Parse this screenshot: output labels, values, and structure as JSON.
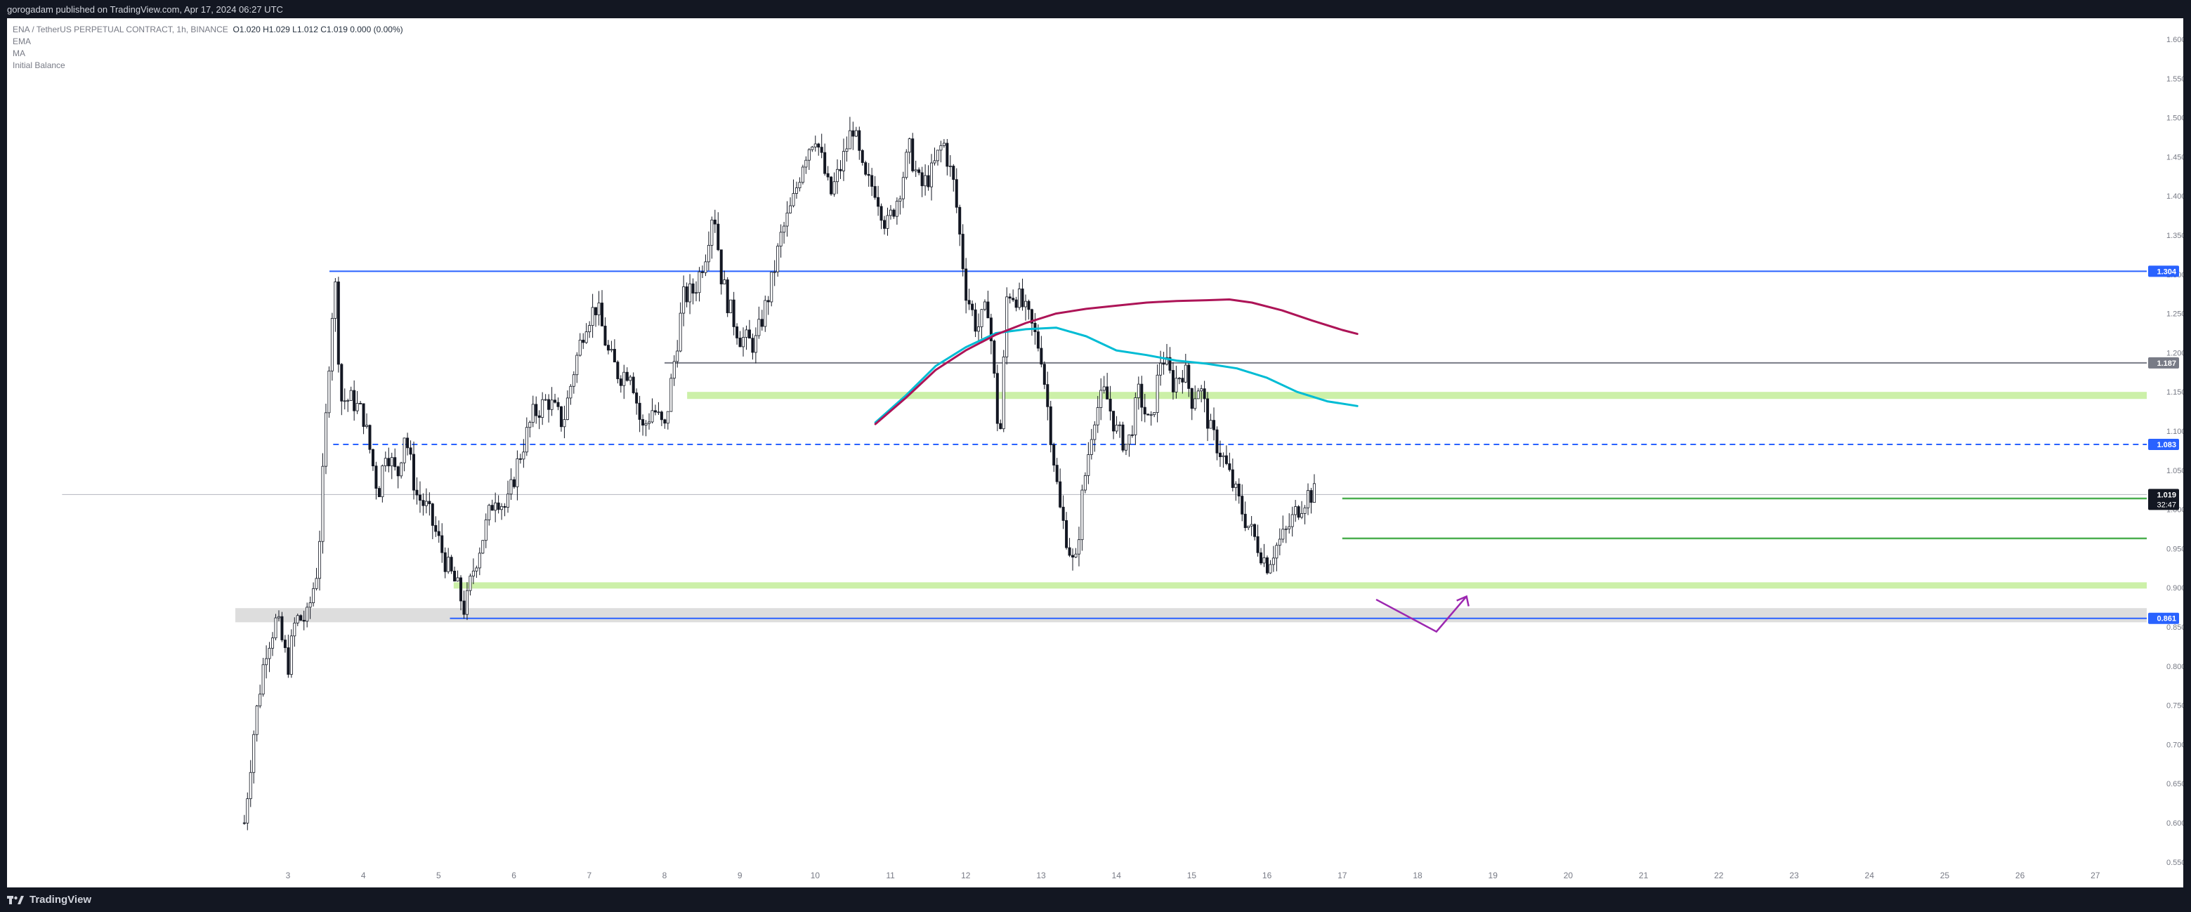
{
  "header": {
    "publisher": "gorogadam published on TradingView.com, Apr 17, 2024 06:27 UTC"
  },
  "legend": {
    "symbol": "ENA / TetherUS PERPETUAL CONTRACT, 1h, BINANCE",
    "ohlc": "O1.020  H1.029  L1.012  C1.019  0.000 (0.00%)",
    "indicators": [
      "EMA",
      "MA",
      "Initial Balance"
    ]
  },
  "footer": {
    "brand": "TradingView"
  },
  "chart_data": {
    "type": "candlestick",
    "x_axis": {
      "labels": [
        "3",
        "4",
        "5",
        "6",
        "7",
        "8",
        "9",
        "10",
        "11",
        "12",
        "13",
        "14",
        "15",
        "16",
        "17",
        "18",
        "19",
        "20",
        "21",
        "22",
        "23",
        "24",
        "25",
        "26",
        "27"
      ]
    },
    "y_axis": {
      "range": [
        0.525,
        1.625
      ],
      "ticks": [
        "1.600",
        "1.550",
        "1.500",
        "1.450",
        "1.400",
        "1.350",
        "1.300",
        "1.250",
        "1.200",
        "1.150",
        "1.100",
        "1.050",
        "1.000",
        "0.950",
        "0.900",
        "0.850",
        "0.800",
        "0.750",
        "0.700",
        "0.650",
        "0.600",
        "0.550"
      ]
    },
    "price_labels": [
      {
        "value": 1.304,
        "text": "1.304",
        "color": "#2962ff"
      },
      {
        "value": 1.187,
        "text": "1.187",
        "color": "#787b86"
      },
      {
        "value": 1.083,
        "text": "1.083",
        "color": "#2962ff"
      },
      {
        "value": 1.019,
        "text": "1.019",
        "countdown": "32:47",
        "color": "#131722"
      },
      {
        "value": 0.861,
        "text": "0.861",
        "color": "#2962ff"
      }
    ],
    "horizontal_levels": [
      {
        "kind": "solid",
        "value": 1.304,
        "from_day": 3.55,
        "color": "#2962ff"
      },
      {
        "kind": "solid",
        "value": 1.187,
        "from_day": 8.0,
        "color": "#787b86"
      },
      {
        "kind": "dashed",
        "value": 1.083,
        "from_day": 3.6,
        "color": "#2962ff"
      },
      {
        "kind": "solid",
        "value": 1.019,
        "from_day": 0.0,
        "color": "#b2b5be"
      },
      {
        "kind": "solid",
        "value": 0.861,
        "from_day": 5.15,
        "color": "#2962ff"
      },
      {
        "kind": "solid",
        "value": 1.014,
        "from_day": 17.0,
        "color": "#4caf50"
      },
      {
        "kind": "solid",
        "value": 0.963,
        "from_day": 17.0,
        "color": "#4caf50"
      }
    ],
    "zones": [
      {
        "top": 1.15,
        "bottom": 1.141,
        "from_day": 8.3,
        "color": "#ccf0a8"
      },
      {
        "top": 0.907,
        "bottom": 0.899,
        "from_day": 5.2,
        "color": "#ccf0a8"
      },
      {
        "top": 0.874,
        "bottom": 0.856,
        "from_day": 2.3,
        "color": "#dddddd"
      }
    ],
    "series": [
      {
        "name": "EMA",
        "color": "#00bcd4",
        "points": [
          [
            10.8,
            1.111
          ],
          [
            11.2,
            1.145
          ],
          [
            11.6,
            1.183
          ],
          [
            12.0,
            1.207
          ],
          [
            12.4,
            1.225
          ],
          [
            12.8,
            1.23
          ],
          [
            13.2,
            1.232
          ],
          [
            13.6,
            1.221
          ],
          [
            14.0,
            1.203
          ],
          [
            14.4,
            1.197
          ],
          [
            14.8,
            1.19
          ],
          [
            15.2,
            1.186
          ],
          [
            15.6,
            1.18
          ],
          [
            16.0,
            1.168
          ],
          [
            16.4,
            1.15
          ],
          [
            16.8,
            1.138
          ],
          [
            17.2,
            1.132
          ]
        ]
      },
      {
        "name": "MA",
        "color": "#ad1457",
        "points": [
          [
            10.8,
            1.109
          ],
          [
            11.2,
            1.142
          ],
          [
            11.6,
            1.178
          ],
          [
            12.0,
            1.203
          ],
          [
            12.4,
            1.223
          ],
          [
            12.8,
            1.238
          ],
          [
            13.2,
            1.25
          ],
          [
            13.6,
            1.256
          ],
          [
            14.0,
            1.26
          ],
          [
            14.4,
            1.264
          ],
          [
            14.8,
            1.266
          ],
          [
            15.2,
            1.267
          ],
          [
            15.5,
            1.268
          ],
          [
            15.8,
            1.264
          ],
          [
            16.2,
            1.254
          ],
          [
            16.6,
            1.241
          ],
          [
            17.0,
            1.229
          ],
          [
            17.2,
            1.224
          ]
        ]
      }
    ],
    "projection": {
      "color": "#9c27b0",
      "points": [
        [
          18.25,
          0.844
        ],
        [
          18.65,
          0.889
        ]
      ],
      "start": [
        17.45,
        0.885
      ]
    },
    "candles_note": "hourly OHLC candles approximated from the chart",
    "price_path": [
      [
        2.42,
        0.6
      ],
      [
        2.55,
        0.72
      ],
      [
        2.7,
        0.82
      ],
      [
        2.85,
        0.86
      ],
      [
        3.0,
        0.8
      ],
      [
        3.1,
        0.86
      ],
      [
        3.25,
        0.86
      ],
      [
        3.4,
        0.93
      ],
      [
        3.55,
        1.2
      ],
      [
        3.62,
        1.3
      ],
      [
        3.7,
        1.14
      ],
      [
        3.85,
        1.14
      ],
      [
        4.0,
        1.12
      ],
      [
        4.1,
        1.07
      ],
      [
        4.2,
        1.02
      ],
      [
        4.3,
        1.08
      ],
      [
        4.45,
        1.04
      ],
      [
        4.55,
        1.1
      ],
      [
        4.7,
        1.02
      ],
      [
        4.85,
        1.0
      ],
      [
        5.0,
        0.96
      ],
      [
        5.1,
        0.93
      ],
      [
        5.25,
        0.9
      ],
      [
        5.35,
        0.87
      ],
      [
        5.45,
        0.92
      ],
      [
        5.6,
        0.97
      ],
      [
        5.75,
        1.02
      ],
      [
        5.9,
        1.0
      ],
      [
        6.05,
        1.06
      ],
      [
        6.25,
        1.12
      ],
      [
        6.45,
        1.14
      ],
      [
        6.65,
        1.11
      ],
      [
        6.8,
        1.18
      ],
      [
        6.95,
        1.24
      ],
      [
        7.1,
        1.26
      ],
      [
        7.25,
        1.2
      ],
      [
        7.4,
        1.17
      ],
      [
        7.55,
        1.18
      ],
      [
        7.7,
        1.1
      ],
      [
        7.85,
        1.13
      ],
      [
        8.0,
        1.1
      ],
      [
        8.1,
        1.17
      ],
      [
        8.25,
        1.27
      ],
      [
        8.4,
        1.28
      ],
      [
        8.55,
        1.33
      ],
      [
        8.65,
        1.39
      ],
      [
        8.75,
        1.3
      ],
      [
        8.85,
        1.26
      ],
      [
        9.0,
        1.22
      ],
      [
        9.2,
        1.21
      ],
      [
        9.4,
        1.28
      ],
      [
        9.55,
        1.35
      ],
      [
        9.7,
        1.39
      ],
      [
        9.85,
        1.45
      ],
      [
        10.0,
        1.48
      ],
      [
        10.1,
        1.44
      ],
      [
        10.2,
        1.4
      ],
      [
        10.35,
        1.44
      ],
      [
        10.5,
        1.49
      ],
      [
        10.65,
        1.42
      ],
      [
        10.8,
        1.41
      ],
      [
        10.95,
        1.36
      ],
      [
        11.1,
        1.4
      ],
      [
        11.25,
        1.46
      ],
      [
        11.4,
        1.41
      ],
      [
        11.55,
        1.43
      ],
      [
        11.7,
        1.47
      ],
      [
        11.85,
        1.41
      ],
      [
        12.0,
        1.28
      ],
      [
        12.15,
        1.23
      ],
      [
        12.3,
        1.26
      ],
      [
        12.45,
        1.08
      ],
      [
        12.55,
        1.28
      ],
      [
        12.7,
        1.27
      ],
      [
        12.85,
        1.24
      ],
      [
        13.0,
        1.2
      ],
      [
        13.15,
        1.08
      ],
      [
        13.25,
        1.0
      ],
      [
        13.35,
        0.96
      ],
      [
        13.45,
        0.92
      ],
      [
        13.55,
        1.02
      ],
      [
        13.7,
        1.12
      ],
      [
        13.85,
        1.15
      ],
      [
        14.0,
        1.1
      ],
      [
        14.15,
        1.08
      ],
      [
        14.3,
        1.15
      ],
      [
        14.45,
        1.1
      ],
      [
        14.6,
        1.2
      ],
      [
        14.75,
        1.16
      ],
      [
        14.9,
        1.18
      ],
      [
        15.0,
        1.14
      ],
      [
        15.1,
        1.16
      ],
      [
        15.25,
        1.1
      ],
      [
        15.4,
        1.07
      ],
      [
        15.55,
        1.03
      ],
      [
        15.7,
        0.99
      ],
      [
        15.85,
        0.96
      ],
      [
        16.0,
        0.93
      ],
      [
        16.1,
        0.95
      ],
      [
        16.25,
        0.97
      ],
      [
        16.4,
        1.0
      ],
      [
        16.55,
        1.02
      ],
      [
        16.65,
        1.02
      ]
    ]
  }
}
